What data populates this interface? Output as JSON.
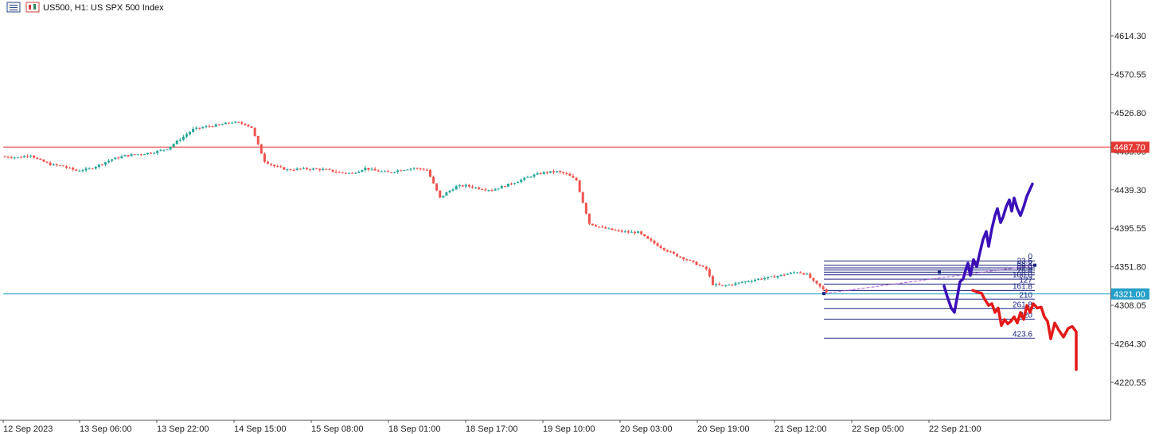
{
  "header": {
    "title": "US500, H1:  US SPX 500 Index",
    "menu_icon": "list-menu-icon",
    "chart_icon": "candle-chart-icon"
  },
  "colors": {
    "bull": "#26a69a",
    "bear": "#ef5350",
    "resistance": "#e53935",
    "support": "#26a0c8",
    "fib": "#1a237e",
    "forecast_up": "#3a0fb8",
    "forecast_down": "#e31a1a",
    "trend": "#b05ad6"
  },
  "chart_data": {
    "type": "candlestick",
    "title": "US500, H1:  US SPX 500 Index",
    "ylim": [
      4196,
      4660
    ],
    "y_ticks": [
      4614.3,
      4570.55,
      4526.8,
      4483.05,
      4439.3,
      4395.55,
      4351.8,
      4308.05,
      4264.3,
      4220.55
    ],
    "y_tick_labels": [
      "4614.30",
      "4570.55",
      "4526.80",
      "4483.05",
      "4439.30",
      "4395.55",
      "4351.80",
      "4308.05",
      "4264.30",
      "4220.55"
    ],
    "x_tick_labels": [
      "12 Sep 2023",
      "13 Sep 06:00",
      "13 Sep 22:00",
      "14 Sep 15:00",
      "15 Sep 08:00",
      "18 Sep 01:00",
      "18 Sep 17:00",
      "19 Sep 10:00",
      "20 Sep 03:00",
      "20 Sep 19:00",
      "21 Sep 12:00",
      "22 Sep 05:00",
      "22 Sep 21:00"
    ],
    "price_path": [
      [
        0,
        4477
      ],
      [
        4,
        4476
      ],
      [
        8,
        4479
      ],
      [
        10,
        4474
      ],
      [
        14,
        4468
      ],
      [
        18,
        4466
      ],
      [
        22,
        4461
      ],
      [
        26,
        4463
      ],
      [
        30,
        4469
      ],
      [
        33,
        4474
      ],
      [
        37,
        4478
      ],
      [
        42,
        4480
      ],
      [
        46,
        4482
      ],
      [
        50,
        4486
      ],
      [
        54,
        4497
      ],
      [
        58,
        4508
      ],
      [
        62,
        4511
      ],
      [
        66,
        4513
      ],
      [
        70,
        4516
      ],
      [
        74,
        4514
      ],
      [
        76,
        4510
      ],
      [
        78,
        4490
      ],
      [
        80,
        4472
      ],
      [
        83,
        4466
      ],
      [
        87,
        4462
      ],
      [
        91,
        4463
      ],
      [
        95,
        4463
      ],
      [
        99,
        4462
      ],
      [
        103,
        4459
      ],
      [
        107,
        4458
      ],
      [
        111,
        4464
      ],
      [
        114,
        4461
      ],
      [
        118,
        4459
      ],
      [
        122,
        4462
      ],
      [
        126,
        4464
      ],
      [
        130,
        4462
      ],
      [
        132,
        4446
      ],
      [
        134,
        4430
      ],
      [
        136,
        4436
      ],
      [
        139,
        4443
      ],
      [
        142,
        4444
      ],
      [
        146,
        4441
      ],
      [
        150,
        4439
      ],
      [
        154,
        4444
      ],
      [
        158,
        4449
      ],
      [
        162,
        4455
      ],
      [
        166,
        4459
      ],
      [
        170,
        4460
      ],
      [
        173,
        4457
      ],
      [
        176,
        4450
      ],
      [
        178,
        4425
      ],
      [
        180,
        4401
      ],
      [
        184,
        4396
      ],
      [
        188,
        4393
      ],
      [
        192,
        4391
      ],
      [
        195,
        4391
      ],
      [
        198,
        4383
      ],
      [
        202,
        4374
      ],
      [
        206,
        4366
      ],
      [
        210,
        4360
      ],
      [
        214,
        4353
      ],
      [
        216,
        4349
      ],
      [
        218,
        4332
      ],
      [
        221,
        4330
      ],
      [
        224,
        4332
      ],
      [
        228,
        4335
      ],
      [
        232,
        4338
      ],
      [
        236,
        4340
      ],
      [
        240,
        4343
      ],
      [
        244,
        4346
      ],
      [
        247,
        4343
      ],
      [
        249,
        4335
      ],
      [
        251,
        4329
      ],
      [
        253,
        4323
      ]
    ],
    "resistance_level": {
      "value": 4487.7,
      "label": "4487.70"
    },
    "support_level": {
      "value": 4321.0,
      "label": "4321.00"
    },
    "fibonacci": {
      "levels": [
        {
          "label": "0",
          "value": 4358.5
        },
        {
          "label": "23.6",
          "value": 4353.6
        },
        {
          "label": "38.2",
          "value": 4350.6
        },
        {
          "label": "50.0",
          "value": 4348.1
        },
        {
          "label": "61.8",
          "value": 4345.7
        },
        {
          "label": "76.4",
          "value": 4342.7
        },
        {
          "label": "100.0",
          "value": 4337.8
        },
        {
          "label": "127",
          "value": 4332.2
        },
        {
          "label": "161.8",
          "value": 4325.0
        },
        {
          "label": "210",
          "value": 4315.1
        },
        {
          "label": "261.8",
          "value": 4304.3
        },
        {
          "label": "320",
          "value": 4292.3
        },
        {
          "label": "423.6",
          "value": 4270.8
        }
      ]
    }
  }
}
